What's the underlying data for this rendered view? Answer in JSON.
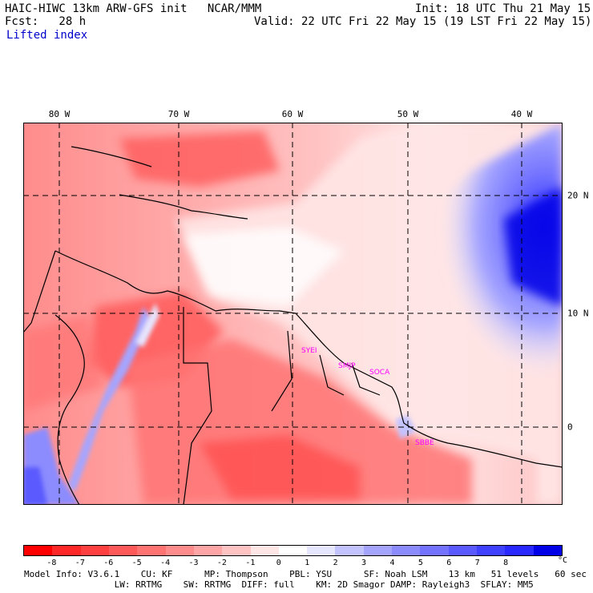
{
  "header": {
    "model_line": "HAIC-HIWC 13km ARW-GFS init   NCAR/MMM",
    "fcst_line": "Fcst:   28 h",
    "field_name": "Lifted index",
    "init_line": "Init: 18 UTC Thu 21 May 15",
    "valid_line": "Valid: 22 UTC Fri 22 May 15 (19 LST Fri 22 May 15)"
  },
  "map": {
    "lon_labels": [
      "80 W",
      "70 W",
      "60 W",
      "50 W",
      "40 W"
    ],
    "lat_labels": [
      "20 N",
      "10 N",
      "0"
    ],
    "stations": [
      "SYEI",
      "SMJP",
      "SOCA",
      "SBBE"
    ],
    "station_color": "#ff00ff"
  },
  "colorbar": {
    "colors": [
      "#ff0000",
      "#ff2828",
      "#ff4040",
      "#ff5a5a",
      "#ff7373",
      "#ff8c8c",
      "#ffa5a5",
      "#ffc3c3",
      "#ffe6e6",
      "#ffffff",
      "#e6e6ff",
      "#c3c3ff",
      "#a5a5ff",
      "#8c8cff",
      "#7373ff",
      "#5a5aff",
      "#4040ff",
      "#2828ff",
      "#0000e6"
    ],
    "ticks": [
      "-8",
      "-7",
      "-6",
      "-5",
      "-4",
      "-3",
      "-2",
      "-1",
      "0",
      "1",
      "2",
      "3",
      "4",
      "5",
      "6",
      "7",
      "8"
    ],
    "unit": "°C"
  },
  "footer": {
    "line1": "Model Info: V3.6.1    CU: KF      MP: Thompson    PBL: YSU      SF: Noah LSM    13 km   51 levels   60 sec",
    "line2": "                 LW: RRTMG    SW: RRTMG  DIFF: full    KM: 2D Smagor DAMP: Rayleigh3  SFLAY: MM5"
  }
}
